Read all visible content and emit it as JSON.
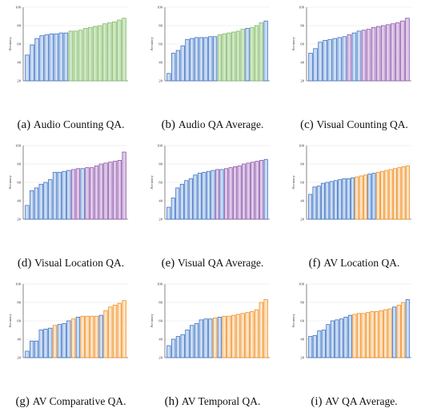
{
  "chart_data": [
    {
      "type": "bar",
      "tag": "(a)",
      "caption": "Audio Counting QA.",
      "ylabel": "Accuracy",
      "ylim": [
        20,
        100
      ],
      "yticks": [
        "20",
        "40",
        "60",
        "80",
        "100"
      ],
      "values": [
        48,
        59,
        66,
        69,
        70,
        71,
        71,
        72,
        72,
        74,
        74,
        75,
        77,
        78,
        79,
        80,
        82,
        83,
        84,
        86,
        88
      ],
      "groups": [
        "blue",
        "blue",
        "blue",
        "blue",
        "blue",
        "blue",
        "blue",
        "blue",
        "blue",
        "green",
        "green",
        "green",
        "green",
        "green",
        "green",
        "green",
        "green",
        "green",
        "green",
        "green",
        "green"
      ]
    },
    {
      "type": "bar",
      "tag": "(b)",
      "caption": "Audio QA Average.",
      "ylabel": "Accuracy",
      "ylim": [
        20,
        100
      ],
      "yticks": [
        "20",
        "40",
        "60",
        "80",
        "100"
      ],
      "values": [
        28,
        50,
        53,
        58,
        65,
        66,
        67,
        67,
        67,
        68,
        68,
        70,
        71,
        72,
        73,
        74,
        76,
        77,
        78,
        80,
        83,
        85
      ],
      "groups": [
        "blue",
        "blue",
        "blue",
        "blue",
        "blue",
        "blue",
        "blue",
        "blue",
        "blue",
        "blue",
        "blue",
        "green",
        "green",
        "green",
        "green",
        "green",
        "green",
        "blue",
        "green",
        "green",
        "green",
        "blue"
      ]
    },
    {
      "type": "bar",
      "tag": "(c)",
      "caption": "Visual Counting QA.",
      "ylabel": "Accuracy",
      "ylim": [
        20,
        100
      ],
      "yticks": [
        "20",
        "40",
        "60",
        "80",
        "100"
      ],
      "values": [
        50,
        55,
        62,
        64,
        65,
        66,
        67,
        68,
        70,
        72,
        74,
        75,
        76,
        78,
        79,
        80,
        81,
        82,
        83,
        85,
        88
      ],
      "groups": [
        "blue",
        "blue",
        "blue",
        "blue",
        "blue",
        "blue",
        "blue",
        "blue",
        "purple",
        "blue",
        "blue",
        "purple",
        "purple",
        "purple",
        "purple",
        "purple",
        "purple",
        "purple",
        "purple",
        "purple",
        "purple"
      ]
    },
    {
      "type": "bar",
      "tag": "(d)",
      "caption": "Visual Location QA.",
      "ylabel": "Accuracy",
      "ylim": [
        20,
        100
      ],
      "yticks": [
        "20",
        "40",
        "60",
        "80",
        "100"
      ],
      "values": [
        35,
        51,
        54,
        58,
        60,
        63,
        71,
        71,
        72,
        73,
        74,
        75,
        75,
        76,
        76,
        78,
        80,
        81,
        82,
        83,
        84,
        93
      ],
      "groups": [
        "blue",
        "blue",
        "blue",
        "blue",
        "blue",
        "blue",
        "blue",
        "blue",
        "blue",
        "blue",
        "purple",
        "purple",
        "blue",
        "purple",
        "purple",
        "purple",
        "purple",
        "purple",
        "purple",
        "purple",
        "purple",
        "purple"
      ]
    },
    {
      "type": "bar",
      "tag": "(e)",
      "caption": "Visual QA Average.",
      "ylabel": "Accuracy",
      "ylim": [
        20,
        100
      ],
      "yticks": [
        "20",
        "40",
        "60",
        "80",
        "100"
      ],
      "values": [
        33,
        43,
        54,
        58,
        62,
        64,
        68,
        70,
        71,
        72,
        73,
        74,
        74,
        75,
        76,
        77,
        78,
        80,
        81,
        82,
        83,
        84,
        85
      ],
      "groups": [
        "blue",
        "blue",
        "blue",
        "blue",
        "blue",
        "blue",
        "blue",
        "blue",
        "blue",
        "blue",
        "blue",
        "purple",
        "blue",
        "purple",
        "purple",
        "purple",
        "purple",
        "purple",
        "purple",
        "purple",
        "purple",
        "purple",
        "blue"
      ]
    },
    {
      "type": "bar",
      "tag": "(f)",
      "caption": "AV Location QA.",
      "ylabel": "Accuracy",
      "ylim": [
        20,
        100
      ],
      "yticks": [
        "20",
        "40",
        "60",
        "80",
        "100"
      ],
      "values": [
        47,
        55,
        56,
        59,
        60,
        61,
        62,
        63,
        64,
        64,
        65,
        66,
        67,
        68,
        69,
        70,
        71,
        72,
        73,
        74,
        75,
        76,
        77,
        78
      ],
      "groups": [
        "blue",
        "blue",
        "blue",
        "blue",
        "blue",
        "blue",
        "blue",
        "blue",
        "blue",
        "blue",
        "blue",
        "orange",
        "orange",
        "orange",
        "blue",
        "blue",
        "orange",
        "orange",
        "orange",
        "orange",
        "orange",
        "orange",
        "orange",
        "orange"
      ]
    },
    {
      "type": "bar",
      "tag": "(g)",
      "caption": "AV Comparative QA.",
      "ylabel": "Accuracy",
      "ylim": [
        20,
        100
      ],
      "yticks": [
        "20",
        "40",
        "60",
        "80",
        "100"
      ],
      "values": [
        27,
        38,
        38,
        50,
        51,
        52,
        55,
        56,
        57,
        60,
        62,
        64,
        65,
        65,
        65,
        65,
        66,
        71,
        75,
        77,
        79,
        82
      ],
      "groups": [
        "blue",
        "blue",
        "blue",
        "blue",
        "blue",
        "blue",
        "orange",
        "blue",
        "blue",
        "blue",
        "orange",
        "blue",
        "orange",
        "orange",
        "orange",
        "orange",
        "blue",
        "orange",
        "orange",
        "orange",
        "orange",
        "orange"
      ]
    },
    {
      "type": "bar",
      "tag": "(h)",
      "caption": "AV Temporal QA.",
      "ylabel": "Accuracy",
      "ylim": [
        20,
        100
      ],
      "yticks": [
        "20",
        "40",
        "60",
        "80",
        "100"
      ],
      "values": [
        33,
        40,
        43,
        45,
        50,
        55,
        57,
        61,
        62,
        62,
        63,
        64,
        65,
        65,
        66,
        67,
        68,
        69,
        70,
        72,
        80,
        83
      ],
      "groups": [
        "blue",
        "blue",
        "blue",
        "blue",
        "blue",
        "blue",
        "blue",
        "blue",
        "blue",
        "blue",
        "orange",
        "blue",
        "orange",
        "orange",
        "orange",
        "orange",
        "orange",
        "orange",
        "orange",
        "orange",
        "orange",
        "orange"
      ]
    },
    {
      "type": "bar",
      "tag": "(i)",
      "caption": "AV QA Average.",
      "ylabel": "Accuracy",
      "ylim": [
        20,
        100
      ],
      "yticks": [
        "20",
        "40",
        "60",
        "80",
        "100"
      ],
      "values": [
        43,
        44,
        49,
        50,
        56,
        60,
        61,
        62,
        64,
        66,
        67,
        68,
        68,
        69,
        70,
        70,
        71,
        72,
        73,
        75,
        77,
        80,
        83
      ],
      "groups": [
        "blue",
        "blue",
        "blue",
        "blue",
        "blue",
        "blue",
        "blue",
        "blue",
        "blue",
        "blue",
        "orange",
        "orange",
        "orange",
        "orange",
        "orange",
        "orange",
        "orange",
        "orange",
        "orange",
        "blue",
        "orange",
        "orange",
        "blue"
      ]
    }
  ],
  "colors": {
    "blue": {
      "fill": "#c9dcf2",
      "stroke": "#3e70c4"
    },
    "green": {
      "fill": "#cfe7c1",
      "stroke": "#7eb869"
    },
    "purple": {
      "fill": "#dfc8e8",
      "stroke": "#8a56a8"
    },
    "orange": {
      "fill": "#fde3c4",
      "stroke": "#f08c1e"
    },
    "axis": "#333333",
    "gridline": "#e3e3e3"
  }
}
